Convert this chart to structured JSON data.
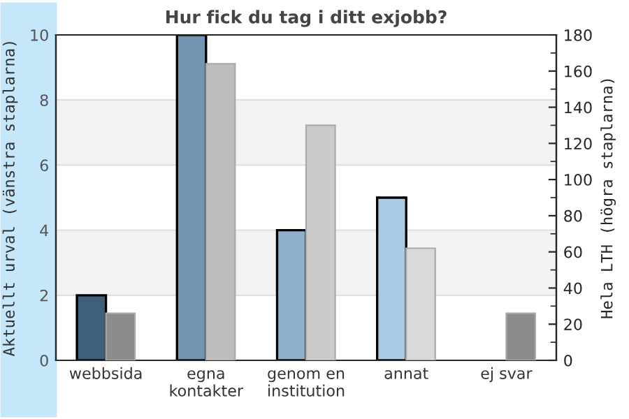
{
  "chart_data": {
    "type": "bar",
    "title": "Hur fick du tag i ditt exjobb?",
    "ylabel": "Aktuellt urval (vänstra staplarna)",
    "y2label": "Hela LTH (högra staplarna)",
    "categories": [
      "webbsida",
      "egna\nkontakter",
      "genom en\ninstitution",
      "annat",
      "ej svar"
    ],
    "series": [
      {
        "colors": [
          "#3f5f7c",
          "#7395b1",
          "#8fb0cc",
          "#aacbe6",
          "#aacbe6"
        ],
        "values": [
          2,
          10,
          4,
          5,
          null
        ]
      },
      {
        "colors": [
          "#8c8c8c",
          "#bdbdbd",
          "#cbcbcb",
          "#d9d9d9",
          "#8c8c8c"
        ],
        "values": [
          26,
          164,
          130,
          62,
          26
        ],
        "axis": "y2"
      }
    ],
    "ylim": [
      0,
      10
    ],
    "yticks": [
      0,
      2,
      4,
      6,
      8,
      10
    ],
    "y2lim": [
      0,
      180
    ],
    "y2ticks": [
      0,
      20,
      40,
      60,
      80,
      100,
      120,
      140,
      160,
      180
    ],
    "bands": [
      {
        "axis": "y",
        "from": 2,
        "to": 4,
        "color": "#f3f3f3"
      },
      {
        "axis": "y",
        "from": 6,
        "to": 8,
        "color": "#f3f3f3"
      }
    ],
    "grid": "y",
    "legend": false
  }
}
